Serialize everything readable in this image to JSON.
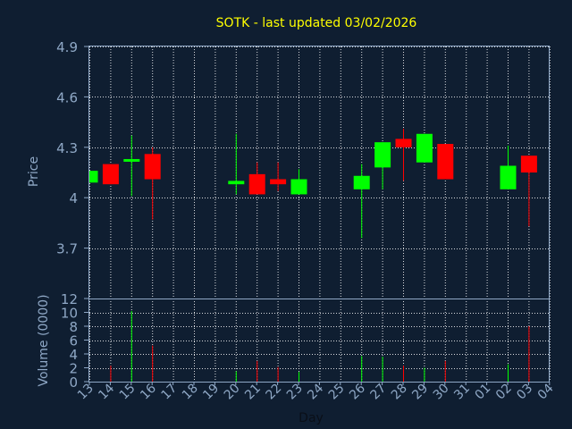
{
  "chart_data": {
    "type": "candlestick",
    "title": "SOTK - last updated 03/02/2026",
    "xlabel": "Day",
    "price_panel": {
      "ylabel": "Price",
      "ylim": [
        3.4,
        4.9
      ],
      "yticks": [
        "4.9",
        "4.6",
        "4.3",
        "4",
        "3.7"
      ],
      "ytick_values": [
        4.9,
        4.6,
        4.3,
        4.0,
        3.7
      ]
    },
    "volume_panel": {
      "ylabel": "Volume (0000)",
      "ylim": [
        0,
        12
      ],
      "yticks": [
        "12",
        "10",
        "8",
        "6",
        "4",
        "2",
        "0"
      ],
      "ytick_values": [
        12,
        10,
        8,
        6,
        4,
        2,
        0
      ]
    },
    "x_tick_labels": [
      "13",
      "14",
      "15",
      "16",
      "17",
      "18",
      "19",
      "20",
      "21",
      "22",
      "23",
      "24",
      "25",
      "26",
      "27",
      "28",
      "29",
      "30",
      "31",
      "01",
      "02",
      "03",
      "04"
    ],
    "candles": [
      {
        "day": "13",
        "open": 4.09,
        "high": 4.16,
        "low": 4.09,
        "close": 4.16,
        "volume": 0.0
      },
      {
        "day": "14",
        "open": 4.2,
        "high": 4.2,
        "low": 4.08,
        "close": 4.08,
        "volume": 2.3
      },
      {
        "day": "15",
        "open": 4.22,
        "high": 4.37,
        "low": 4.01,
        "close": 4.23,
        "volume": 10.2
      },
      {
        "day": "16",
        "open": 4.26,
        "high": 4.3,
        "low": 3.87,
        "close": 4.11,
        "volume": 5.2
      },
      {
        "day": "20",
        "open": 4.08,
        "high": 4.38,
        "low": 4.02,
        "close": 4.1,
        "volume": 1.5
      },
      {
        "day": "21",
        "open": 4.14,
        "high": 4.21,
        "low": 4.02,
        "close": 4.02,
        "volume": 3.0
      },
      {
        "day": "22",
        "open": 4.11,
        "high": 4.21,
        "low": 4.04,
        "close": 4.08,
        "volume": 2.1
      },
      {
        "day": "23",
        "open": 4.02,
        "high": 4.17,
        "low": 4.02,
        "close": 4.11,
        "volume": 1.4
      },
      {
        "day": "26",
        "open": 4.05,
        "high": 4.2,
        "low": 3.76,
        "close": 4.13,
        "volume": 3.7
      },
      {
        "day": "27",
        "open": 4.18,
        "high": 4.33,
        "low": 4.05,
        "close": 4.33,
        "volume": 3.6
      },
      {
        "day": "28",
        "open": 4.35,
        "high": 4.41,
        "low": 4.1,
        "close": 4.3,
        "volume": 2.3
      },
      {
        "day": "29",
        "open": 4.21,
        "high": 4.38,
        "low": 4.21,
        "close": 4.38,
        "volume": 2.0
      },
      {
        "day": "30",
        "open": 4.32,
        "high": 4.32,
        "low": 4.11,
        "close": 4.11,
        "volume": 3.0
      },
      {
        "day": "02",
        "open": 4.05,
        "high": 4.31,
        "low": 4.05,
        "close": 4.19,
        "volume": 2.5
      },
      {
        "day": "03",
        "open": 4.25,
        "high": 4.25,
        "low": 3.83,
        "close": 4.15,
        "volume": 8.0
      }
    ],
    "colors": {
      "background": "#0f1e31",
      "up": "#00ff00",
      "down": "#ff0000",
      "title": "#ffff00",
      "axis_text": "#8fa8c6",
      "grid": "#ffffff"
    },
    "grid": true
  }
}
